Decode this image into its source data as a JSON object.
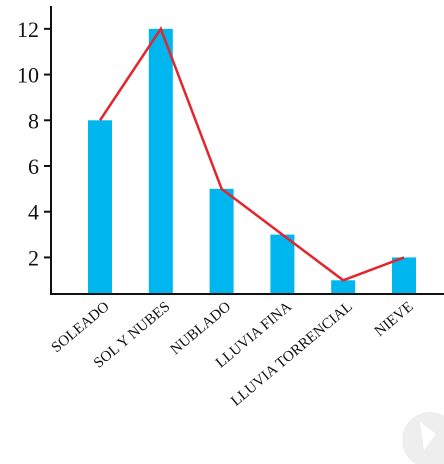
{
  "chart_data": {
    "type": "bar",
    "categories": [
      "SOLEADO",
      "SOL Y NUBES",
      "NUBLADO",
      "LLUVIA FINA",
      "LLUVIA TORRENCIAL",
      "NIEVE"
    ],
    "values": [
      8,
      12,
      5,
      3,
      1,
      2
    ],
    "overlay_line": true,
    "y_ticks": [
      "2",
      "4",
      "6",
      "8",
      "10",
      "12"
    ],
    "ylim": [
      0.4,
      13
    ],
    "title": "",
    "xlabel": "",
    "ylabel": "",
    "grid": false,
    "legend": "none",
    "colors": {
      "bar": "#00b6ee",
      "line": "#e3262d",
      "axis": "#111111"
    }
  }
}
